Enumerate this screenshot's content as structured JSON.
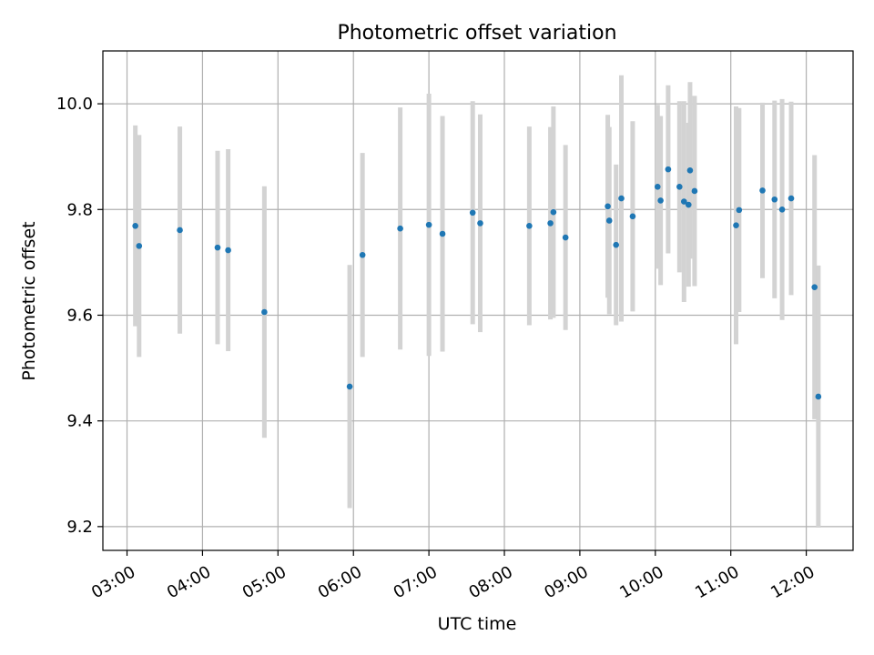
{
  "chart_data": {
    "type": "scatter",
    "title": "Photometric offset variation",
    "xlabel": "UTC time",
    "ylabel": "Photometric offset",
    "x_unit": "hours UTC",
    "xlim": [
      2.68,
      12.62
    ],
    "ylim": [
      9.155,
      10.1
    ],
    "x_ticks": [
      {
        "value": 3,
        "label": "03:00"
      },
      {
        "value": 4,
        "label": "04:00"
      },
      {
        "value": 5,
        "label": "05:00"
      },
      {
        "value": 6,
        "label": "06:00"
      },
      {
        "value": 7,
        "label": "07:00"
      },
      {
        "value": 8,
        "label": "08:00"
      },
      {
        "value": 9,
        "label": "09:00"
      },
      {
        "value": 10,
        "label": "10:00"
      },
      {
        "value": 11,
        "label": "11:00"
      },
      {
        "value": 12,
        "label": "12:00"
      }
    ],
    "y_ticks": [
      {
        "value": 9.2,
        "label": "9.2"
      },
      {
        "value": 9.4,
        "label": "9.4"
      },
      {
        "value": 9.6,
        "label": "9.6"
      },
      {
        "value": 9.8,
        "label": "9.8"
      },
      {
        "value": 10.0,
        "label": "10.0"
      }
    ],
    "grid": true,
    "legend": false,
    "marker_color": "#1f77b4",
    "errorbar_color": "#d3d3d3",
    "points": [
      {
        "x": 3.11,
        "y": 9.769,
        "err": 0.19
      },
      {
        "x": 3.16,
        "y": 9.731,
        "err": 0.21
      },
      {
        "x": 3.7,
        "y": 9.761,
        "err": 0.196
      },
      {
        "x": 4.2,
        "y": 9.728,
        "err": 0.183
      },
      {
        "x": 4.34,
        "y": 9.723,
        "err": 0.191
      },
      {
        "x": 4.82,
        "y": 9.606,
        "err": 0.238
      },
      {
        "x": 5.95,
        "y": 9.465,
        "err": 0.23
      },
      {
        "x": 6.12,
        "y": 9.714,
        "err": 0.193
      },
      {
        "x": 6.62,
        "y": 9.764,
        "err": 0.229
      },
      {
        "x": 7.0,
        "y": 9.771,
        "err": 0.248
      },
      {
        "x": 7.18,
        "y": 9.754,
        "err": 0.223
      },
      {
        "x": 7.58,
        "y": 9.794,
        "err": 0.211
      },
      {
        "x": 7.68,
        "y": 9.774,
        "err": 0.206
      },
      {
        "x": 8.33,
        "y": 9.769,
        "err": 0.188
      },
      {
        "x": 8.61,
        "y": 9.774,
        "err": 0.182
      },
      {
        "x": 8.65,
        "y": 9.795,
        "err": 0.2
      },
      {
        "x": 8.81,
        "y": 9.747,
        "err": 0.175
      },
      {
        "x": 9.37,
        "y": 9.806,
        "err": 0.173
      },
      {
        "x": 9.39,
        "y": 9.779,
        "err": 0.177
      },
      {
        "x": 9.48,
        "y": 9.733,
        "err": 0.152
      },
      {
        "x": 9.55,
        "y": 9.821,
        "err": 0.233
      },
      {
        "x": 9.7,
        "y": 9.787,
        "err": 0.18
      },
      {
        "x": 10.03,
        "y": 9.843,
        "err": 0.155
      },
      {
        "x": 10.07,
        "y": 9.817,
        "err": 0.16
      },
      {
        "x": 10.17,
        "y": 9.876,
        "err": 0.159
      },
      {
        "x": 10.32,
        "y": 9.843,
        "err": 0.162
      },
      {
        "x": 10.38,
        "y": 9.815,
        "err": 0.19
      },
      {
        "x": 10.44,
        "y": 9.809,
        "err": 0.155
      },
      {
        "x": 10.46,
        "y": 9.874,
        "err": 0.167
      },
      {
        "x": 10.52,
        "y": 9.835,
        "err": 0.18
      },
      {
        "x": 11.07,
        "y": 9.77,
        "err": 0.225
      },
      {
        "x": 11.11,
        "y": 9.799,
        "err": 0.193
      },
      {
        "x": 11.42,
        "y": 9.836,
        "err": 0.166
      },
      {
        "x": 11.58,
        "y": 9.819,
        "err": 0.187
      },
      {
        "x": 11.68,
        "y": 9.8,
        "err": 0.209
      },
      {
        "x": 11.8,
        "y": 9.821,
        "err": 0.183
      },
      {
        "x": 12.11,
        "y": 9.653,
        "err": 0.25
      },
      {
        "x": 12.16,
        "y": 9.446,
        "err": 0.248
      }
    ]
  }
}
